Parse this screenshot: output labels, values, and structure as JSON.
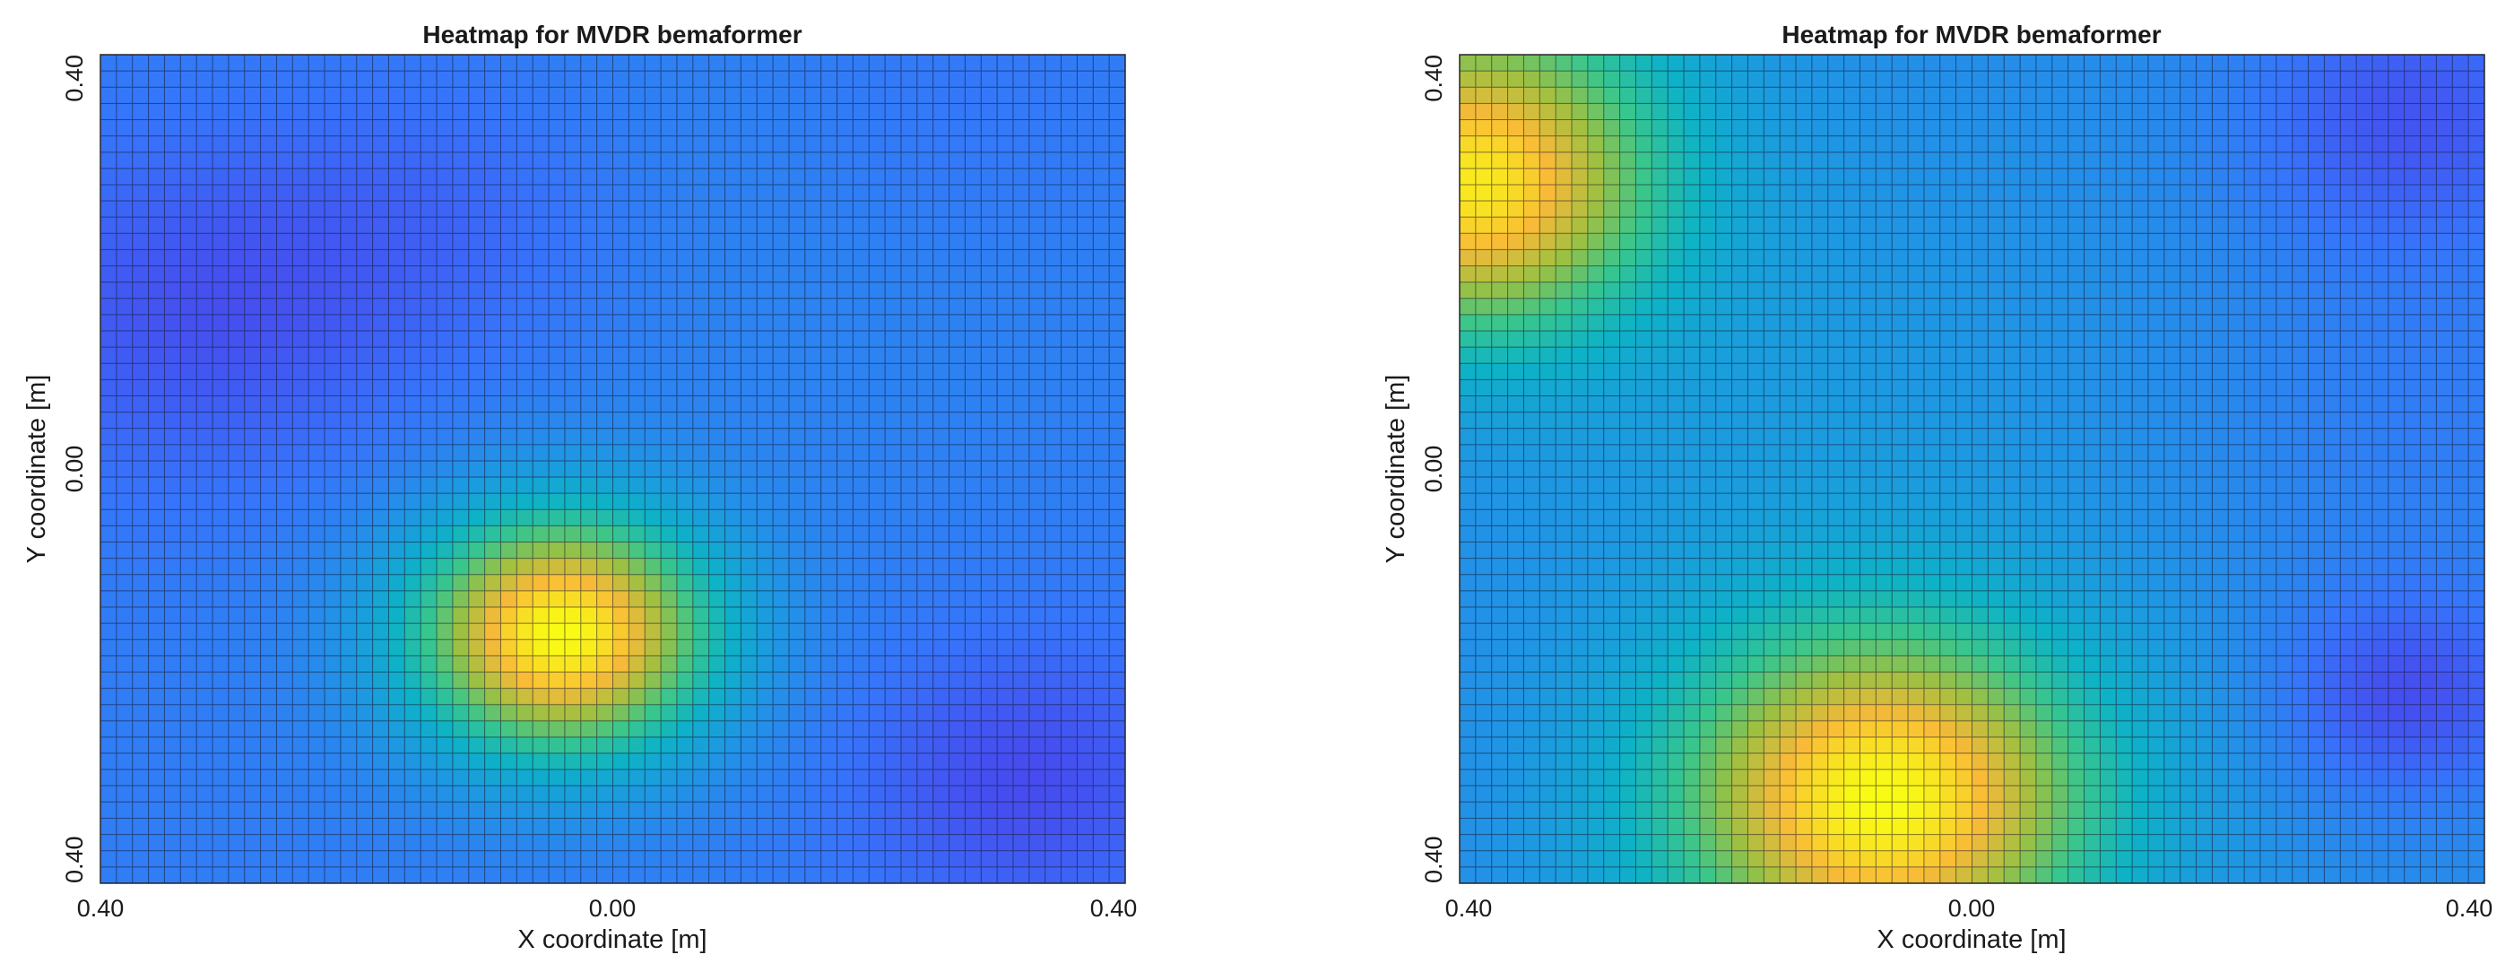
{
  "chart_data": [
    {
      "type": "heatmap",
      "title": "Heatmap for MVDR bemaformer",
      "xlabel": "X coordinate [m]",
      "ylabel": "Y coordinate [m]",
      "x_ticks": [
        "0.40",
        "0.00",
        "0.40"
      ],
      "y_ticks": [
        "0.40",
        "0.00",
        "0.40"
      ],
      "xlim": [
        -0.4,
        0.4
      ],
      "ylim": [
        -0.4,
        0.4
      ],
      "grid": true,
      "grid_cells": [
        64,
        51
      ],
      "colormap": "parula",
      "value_range": [
        0,
        1
      ],
      "field": {
        "base": 0.28,
        "peaks": [
          {
            "x": -0.04,
            "y": -0.16,
            "amp": 0.72,
            "sigma": 0.085
          },
          {
            "x": 0.16,
            "y": 0.24,
            "amp": 0.03,
            "sigma": 0.2
          }
        ],
        "troughs": [
          {
            "x": -0.32,
            "y": 0.15,
            "amp": 0.13,
            "sigma": 0.11
          },
          {
            "x": -0.14,
            "y": 0.24,
            "amp": 0.07,
            "sigma": 0.1
          },
          {
            "x": 0.32,
            "y": -0.3,
            "amp": 0.15,
            "sigma": 0.09
          },
          {
            "x": 0.26,
            "y": 0.34,
            "amp": 0.04,
            "sigma": 0.1
          }
        ]
      }
    },
    {
      "type": "heatmap",
      "title": "Heatmap for MVDR bemaformer",
      "xlabel": "X coordinate [m]",
      "ylabel": "Y coordinate [m]",
      "x_ticks": [
        "0.40",
        "0.00",
        "0.40"
      ],
      "y_ticks": [
        "0.40",
        "0.00",
        "0.40"
      ],
      "xlim": [
        -0.4,
        0.4
      ],
      "ylim": [
        -0.4,
        0.4
      ],
      "grid": true,
      "grid_cells": [
        64,
        51
      ],
      "colormap": "parula",
      "value_range": [
        0,
        1
      ],
      "field": {
        "base": 0.34,
        "peaks": [
          {
            "x": -0.07,
            "y": -0.32,
            "amp": 0.66,
            "sigma": 0.12
          },
          {
            "x": -0.39,
            "y": 0.26,
            "amp": 0.5,
            "sigma": 0.1
          },
          {
            "x": -0.39,
            "y": 0.38,
            "amp": 0.18,
            "sigma": 0.12
          },
          {
            "x": -0.15,
            "y": 0.06,
            "amp": 0.05,
            "sigma": 0.18
          }
        ],
        "troughs": [
          {
            "x": 0.34,
            "y": -0.22,
            "amp": 0.2,
            "sigma": 0.07
          },
          {
            "x": 0.34,
            "y": 0.34,
            "amp": 0.18,
            "sigma": 0.09
          },
          {
            "x": 0.36,
            "y": 0.06,
            "amp": 0.06,
            "sigma": 0.12
          }
        ]
      }
    }
  ]
}
